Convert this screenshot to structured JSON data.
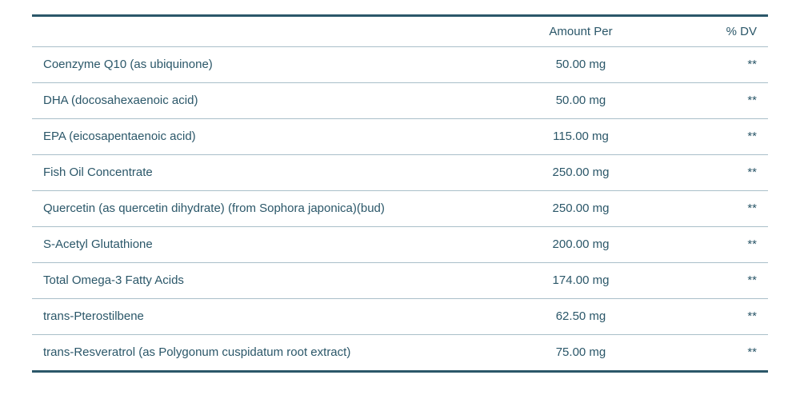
{
  "table": {
    "type": "table",
    "border_color": "#2b5769",
    "row_separator_color": "#a9bfc9",
    "text_color": "#2b5769",
    "background_color": "#ffffff",
    "font_family": "Segoe UI, Arial, sans-serif",
    "header_fontsize": 15,
    "row_fontsize": 15,
    "top_border_width": 3,
    "bottom_border_width": 3,
    "row_separator_width": 1,
    "columns": [
      {
        "key": "name",
        "label": "",
        "align": "left"
      },
      {
        "key": "amount",
        "label": "Amount Per",
        "align": "center"
      },
      {
        "key": "dv",
        "label": "% DV",
        "align": "right"
      }
    ],
    "rows": [
      {
        "name": "Coenzyme Q10 (as ubiquinone)",
        "amount": "50.00 mg",
        "dv": "**"
      },
      {
        "name": "DHA (docosahexaenoic acid)",
        "amount": "50.00 mg",
        "dv": "**"
      },
      {
        "name": "EPA (eicosapentaenoic acid)",
        "amount": "115.00 mg",
        "dv": "**"
      },
      {
        "name": "Fish Oil Concentrate",
        "amount": "250.00 mg",
        "dv": "**"
      },
      {
        "name": "Quercetin (as quercetin dihydrate) (from Sophora japonica)(bud)",
        "amount": "250.00 mg",
        "dv": "**"
      },
      {
        "name": "S-Acetyl Glutathione",
        "amount": "200.00 mg",
        "dv": "**"
      },
      {
        "name": "Total Omega-3 Fatty Acids",
        "amount": "174.00 mg",
        "dv": "**"
      },
      {
        "name": "trans-Pterostilbene",
        "amount": "62.50 mg",
        "dv": "**"
      },
      {
        "name": "trans-Resveratrol (as Polygonum cuspidatum root extract)",
        "amount": "75.00 mg",
        "dv": "**"
      }
    ]
  }
}
